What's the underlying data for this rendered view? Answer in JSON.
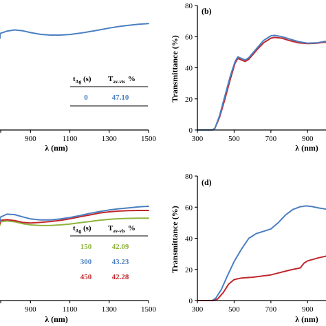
{
  "colors": {
    "blue": "#4a7fc1",
    "red": "#c0272d",
    "green": "#8db43c"
  },
  "chart_data": [
    {
      "id": "a",
      "type": "line",
      "panel_letter": "",
      "xlabel": "λ (nm)",
      "ylabel": "",
      "xlim": [
        300,
        1500
      ],
      "x_tick_labels": [
        "900",
        "1100",
        "1300",
        "1500"
      ],
      "partial_tick_label": "00",
      "y_ticks_shown": false,
      "table": {
        "head_t": "t",
        "head_t_sub": "Ag",
        "head_t_unit": " (s)",
        "head_T": "T",
        "head_T_sub": "av-vis",
        "head_pct": "%",
        "rows": [
          {
            "t": "0",
            "T": "47.10",
            "color": "#4a7fc1"
          }
        ]
      },
      "series": [
        {
          "color": "#4a7fc1",
          "points": [
            [
              700,
              59
            ],
            [
              740,
              62
            ],
            [
              780,
              63.5
            ],
            [
              820,
              64.3
            ],
            [
              860,
              63.8
            ],
            [
              900,
              62.6
            ],
            [
              950,
              61.5
            ],
            [
              1000,
              61
            ],
            [
              1050,
              61
            ],
            [
              1100,
              61.4
            ],
            [
              1150,
              62.2
            ],
            [
              1200,
              63.2
            ],
            [
              1250,
              64.3
            ],
            [
              1300,
              65.5
            ],
            [
              1350,
              66.5
            ],
            [
              1400,
              67.3
            ],
            [
              1450,
              68
            ],
            [
              1500,
              68.4
            ]
          ]
        }
      ]
    },
    {
      "id": "b",
      "type": "line",
      "panel_letter": "(b)",
      "xlabel": "λ (nm)",
      "ylabel": "Transmittance (%)",
      "xlim": [
        300,
        1000
      ],
      "ylim": [
        0,
        80
      ],
      "x_tick_labels": [
        "300",
        "500",
        "700",
        "900"
      ],
      "y_tick_labels": [
        "0",
        "20",
        "40",
        "60",
        "80"
      ],
      "series": [
        {
          "color": "#c0272d",
          "points": [
            [
              300,
              0
            ],
            [
              380,
              0
            ],
            [
              395,
              1
            ],
            [
              420,
              8
            ],
            [
              450,
              20
            ],
            [
              480,
              33
            ],
            [
              505,
              43
            ],
            [
              520,
              46
            ],
            [
              540,
              45
            ],
            [
              560,
              44
            ],
            [
              580,
              45.5
            ],
            [
              620,
              51
            ],
            [
              660,
              56
            ],
            [
              700,
              59
            ],
            [
              720,
              59.5
            ],
            [
              760,
              59
            ],
            [
              800,
              57.5
            ],
            [
              850,
              56
            ],
            [
              900,
              55.5
            ],
            [
              950,
              55.8
            ],
            [
              1000,
              56.5
            ]
          ]
        },
        {
          "color": "#4a7fc1",
          "points": [
            [
              300,
              0
            ],
            [
              380,
              0
            ],
            [
              395,
              1
            ],
            [
              420,
              9
            ],
            [
              450,
              22
            ],
            [
              480,
              35
            ],
            [
              505,
              44
            ],
            [
              520,
              47
            ],
            [
              540,
              46
            ],
            [
              560,
              45
            ],
            [
              580,
              46.5
            ],
            [
              620,
              52
            ],
            [
              660,
              57.5
            ],
            [
              700,
              60.5
            ],
            [
              720,
              60.8
            ],
            [
              760,
              60
            ],
            [
              800,
              58.5
            ],
            [
              850,
              56.8
            ],
            [
              900,
              55.8
            ],
            [
              950,
              56
            ],
            [
              1000,
              57
            ]
          ]
        }
      ]
    },
    {
      "id": "c",
      "type": "line",
      "panel_letter": "",
      "xlabel": "λ (nm)",
      "ylabel": "",
      "xlim": [
        300,
        1500
      ],
      "x_tick_labels": [
        "900",
        "1100",
        "1300",
        "1500"
      ],
      "partial_tick_label": "00",
      "y_ticks_shown": false,
      "table": {
        "head_t": "t",
        "head_t_sub": "Ag",
        "head_t_unit": " (s)",
        "head_T": "T",
        "head_T_sub": "av-vis",
        "head_pct": "%",
        "rows": [
          {
            "t": "150",
            "T": "42.09",
            "color": "#8db43c"
          },
          {
            "t": "300",
            "T": "43.23",
            "color": "#4a7fc1"
          },
          {
            "t": "450",
            "T": "42.28",
            "color": "#c0272d"
          }
        ]
      },
      "series": [
        {
          "color": "#8db43c",
          "points": [
            [
              700,
              48.5
            ],
            [
              740,
              50.5
            ],
            [
              780,
              51.2
            ],
            [
              820,
              50.6
            ],
            [
              860,
              49.4
            ],
            [
              900,
              48.6
            ],
            [
              950,
              48.2
            ],
            [
              1000,
              48.2
            ],
            [
              1050,
              48.6
            ],
            [
              1100,
              49.2
            ],
            [
              1150,
              50
            ],
            [
              1200,
              50.8
            ],
            [
              1250,
              51.6
            ],
            [
              1300,
              52.2
            ],
            [
              1350,
              52.6
            ],
            [
              1400,
              52.8
            ],
            [
              1450,
              52.9
            ],
            [
              1500,
              52.9
            ]
          ]
        },
        {
          "color": "#c0272d",
          "points": [
            [
              700,
              49.5
            ],
            [
              740,
              51.5
            ],
            [
              780,
              52
            ],
            [
              820,
              51.4
            ],
            [
              860,
              50.2
            ],
            [
              900,
              49.8
            ],
            [
              950,
              50.2
            ],
            [
              1000,
              50.8
            ],
            [
              1050,
              51.5
            ],
            [
              1100,
              52.5
            ],
            [
              1150,
              53.8
            ],
            [
              1200,
              55
            ],
            [
              1250,
              56.2
            ],
            [
              1300,
              57
            ],
            [
              1350,
              57.5
            ],
            [
              1400,
              57.8
            ],
            [
              1450,
              57.9
            ],
            [
              1500,
              57.9
            ]
          ]
        },
        {
          "color": "#4a7fc1",
          "points": [
            [
              700,
              51
            ],
            [
              740,
              53.5
            ],
            [
              780,
              55.5
            ],
            [
              820,
              55.2
            ],
            [
              860,
              53.8
            ],
            [
              900,
              52.5
            ],
            [
              950,
              51.8
            ],
            [
              1000,
              51.8
            ],
            [
              1050,
              52.4
            ],
            [
              1100,
              53.4
            ],
            [
              1150,
              54.6
            ],
            [
              1200,
              56
            ],
            [
              1250,
              57.2
            ],
            [
              1300,
              58.2
            ],
            [
              1350,
              59
            ],
            [
              1400,
              59.6
            ],
            [
              1450,
              60.2
            ],
            [
              1500,
              60.6
            ]
          ]
        }
      ]
    },
    {
      "id": "d",
      "type": "line",
      "panel_letter": "(d)",
      "xlabel": "λ (nm)",
      "ylabel": "Transmittance (%)",
      "xlim": [
        300,
        1000
      ],
      "ylim": [
        0,
        80
      ],
      "x_tick_labels": [
        "300",
        "500",
        "700",
        "900"
      ],
      "y_tick_labels": [
        "0",
        "20",
        "40",
        "60",
        "80"
      ],
      "series": [
        {
          "color": "#4a7fc1",
          "points": [
            [
              300,
              0
            ],
            [
              380,
              0
            ],
            [
              400,
              1.5
            ],
            [
              430,
              7
            ],
            [
              460,
              15
            ],
            [
              500,
              25
            ],
            [
              540,
              33
            ],
            [
              580,
              40
            ],
            [
              620,
              43
            ],
            [
              660,
              44.5
            ],
            [
              700,
              46
            ],
            [
              740,
              50
            ],
            [
              780,
              55
            ],
            [
              820,
              58.5
            ],
            [
              860,
              60.3
            ],
            [
              890,
              60.8
            ],
            [
              920,
              60.5
            ],
            [
              960,
              59.5
            ],
            [
              1000,
              58.8
            ]
          ]
        },
        {
          "color": "#c0272d",
          "points": [
            [
              300,
              0
            ],
            [
              390,
              0
            ],
            [
              410,
              1
            ],
            [
              440,
              5
            ],
            [
              470,
              10.5
            ],
            [
              500,
              13.5
            ],
            [
              540,
              14.5
            ],
            [
              600,
              15
            ],
            [
              700,
              16.5
            ],
            [
              800,
              19.5
            ],
            [
              860,
              21
            ],
            [
              880,
              24
            ],
            [
              900,
              25.5
            ],
            [
              960,
              27.5
            ],
            [
              1000,
              28.5
            ]
          ]
        }
      ]
    }
  ]
}
